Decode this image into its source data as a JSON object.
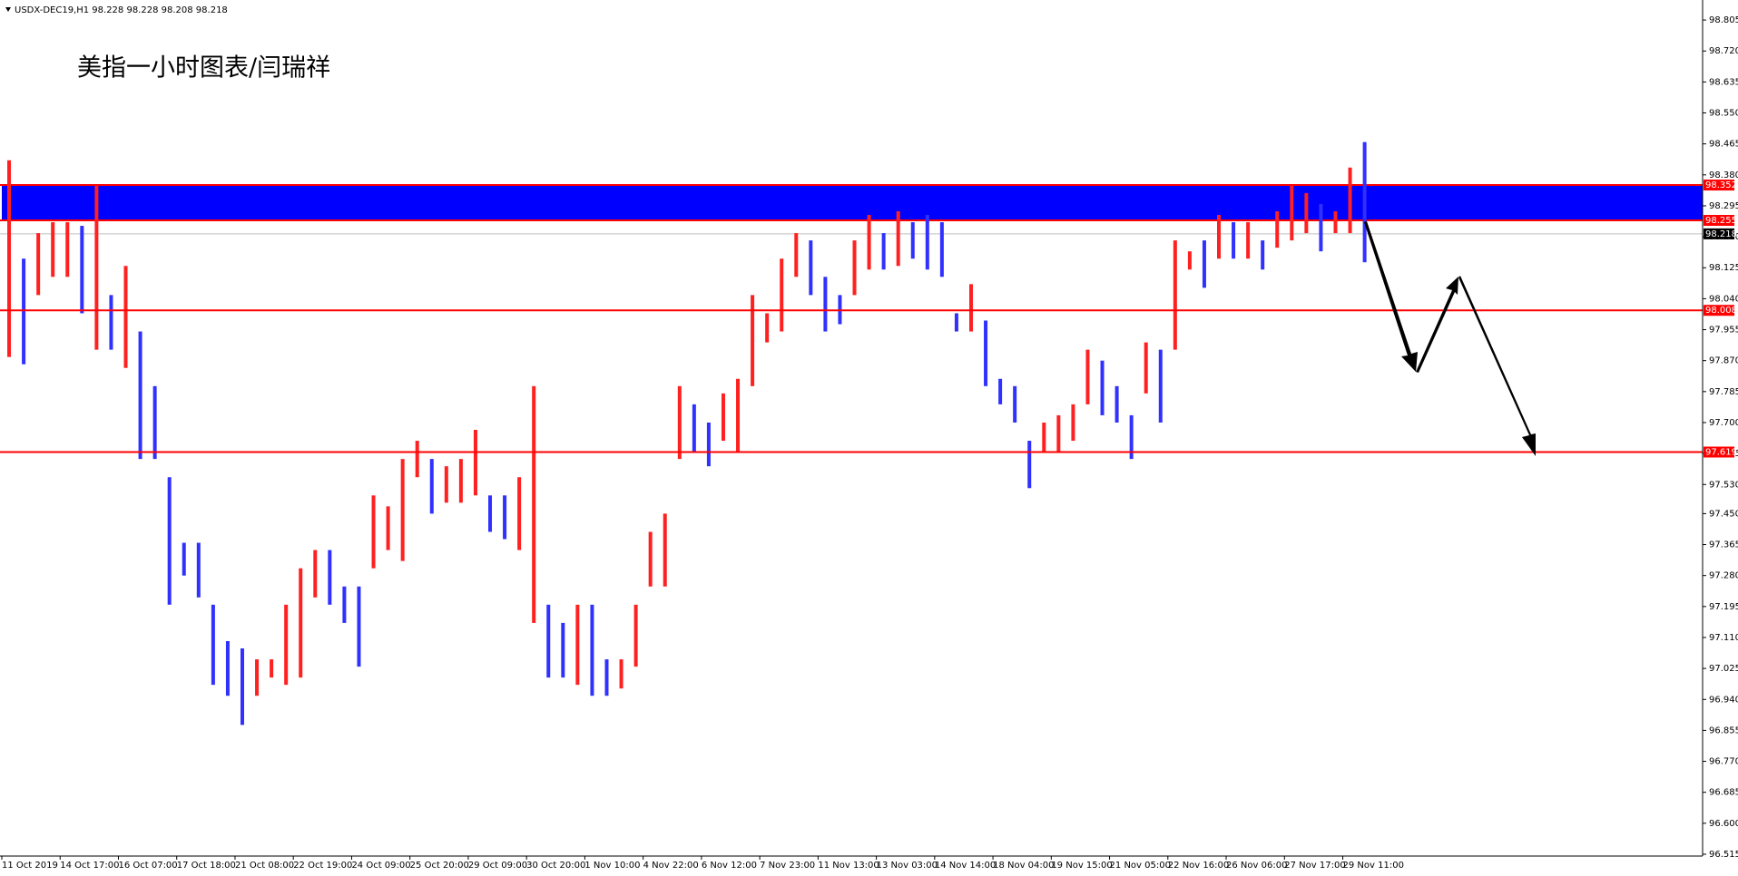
{
  "chart_data": {
    "type": "range-bar",
    "header": "USDX-DEC19,H1  98.228 98.228 98.208 98.218",
    "title": "美指一小时图表/闫瑞祥",
    "up_color": "#ff2020",
    "down_color": "#3030ff",
    "categories": [
      "11 Oct 2019",
      null,
      null,
      null,
      "14 Oct 17:00",
      null,
      null,
      null,
      "16 Oct 07:00",
      null,
      null,
      null,
      "17 Oct 18:00",
      null,
      null,
      null,
      "21 Oct 08:00",
      null,
      null,
      null,
      "22 Oct 19:00",
      null,
      null,
      null,
      "24 Oct 09:00",
      null,
      null,
      null,
      "25 Oct 20:00",
      null,
      null,
      null,
      "29 Oct 09:00",
      null,
      null,
      null,
      "30 Oct 20:00",
      null,
      null,
      null,
      "1 Nov 10:00",
      null,
      null,
      null,
      "4 Nov 22:00",
      null,
      null,
      null,
      "6 Nov 12:00",
      null,
      null,
      null,
      "7 Nov 23:00",
      null,
      null,
      null,
      "11 Nov 13:00",
      null,
      null,
      null,
      "13 Nov 03:00",
      null,
      null,
      null,
      "14 Nov 14:00",
      null,
      null,
      null,
      "18 Nov 04:00",
      null,
      null,
      null,
      "19 Nov 15:00",
      null,
      null,
      null,
      "21 Nov 05:00",
      null,
      null,
      null,
      "22 Nov 16:00",
      null,
      null,
      null,
      "26 Nov 06:00",
      null,
      null,
      null,
      "27 Nov 17:00",
      null,
      null,
      null,
      "29 Nov 11:00",
      null
    ],
    "high": [
      98.42,
      98.15,
      98.22,
      98.25,
      98.25,
      98.24,
      98.35,
      98.05,
      98.13,
      97.95,
      97.8,
      97.55,
      97.37,
      97.37,
      97.2,
      97.1,
      97.08,
      97.05,
      97.05,
      97.2,
      97.3,
      97.35,
      97.35,
      97.25,
      97.25,
      97.5,
      97.47,
      97.6,
      97.65,
      97.6,
      97.58,
      97.6,
      97.68,
      97.5,
      97.5,
      97.55,
      97.8,
      97.2,
      97.15,
      97.2,
      97.2,
      97.05,
      97.05,
      97.2,
      97.4,
      97.45,
      97.8,
      97.75,
      97.7,
      97.78,
      97.82,
      98.05,
      98.0,
      98.15,
      98.22,
      98.2,
      98.1,
      98.05,
      98.2,
      98.27,
      98.22,
      98.28,
      98.25,
      98.27,
      98.25,
      98.0,
      98.08,
      97.98,
      97.82,
      97.8,
      97.65,
      97.7,
      97.72,
      97.75,
      97.9,
      97.87,
      97.8,
      97.72,
      97.92,
      97.9,
      98.2,
      98.17,
      98.2,
      98.27,
      98.25,
      98.25,
      98.2,
      98.28,
      98.35,
      98.33,
      98.3,
      98.28,
      98.4,
      98.47
    ],
    "low": [
      97.88,
      97.86,
      98.05,
      98.1,
      98.1,
      98.0,
      97.9,
      97.9,
      97.85,
      97.6,
      97.6,
      97.2,
      97.28,
      97.22,
      96.98,
      96.95,
      96.87,
      96.95,
      97.0,
      96.98,
      97.0,
      97.22,
      97.2,
      97.15,
      97.03,
      97.3,
      97.35,
      97.32,
      97.55,
      97.45,
      97.48,
      97.48,
      97.5,
      97.4,
      97.38,
      97.35,
      97.15,
      97.0,
      97.0,
      96.98,
      96.95,
      96.95,
      96.97,
      97.03,
      97.25,
      97.25,
      97.6,
      97.62,
      97.58,
      97.65,
      97.62,
      97.8,
      97.92,
      97.95,
      98.1,
      98.05,
      97.95,
      97.97,
      98.05,
      98.12,
      98.12,
      98.13,
      98.15,
      98.12,
      98.1,
      97.95,
      97.95,
      97.8,
      97.75,
      97.7,
      97.52,
      97.62,
      97.62,
      97.65,
      97.75,
      97.72,
      97.7,
      97.6,
      97.78,
      97.7,
      97.9,
      98.12,
      98.07,
      98.15,
      98.15,
      98.15,
      98.12,
      98.18,
      98.2,
      98.22,
      98.17,
      98.22,
      98.22,
      98.14
    ],
    "zone": {
      "low": 98.255,
      "high": 98.352,
      "color": "#0000ff"
    },
    "levels": [
      98.008,
      97.619
    ],
    "level_color": "#ff0000",
    "current": 98.218,
    "current_color": "#000000",
    "ylim": [
      96.51,
      98.855
    ],
    "yticks": [
      98.805,
      {
        "value": 98.72,
        "label": "98.720"
      },
      98.635,
      {
        "value": 98.55,
        "label": "98.550"
      },
      98.465,
      {
        "value": 98.38,
        "label": "98.380"
      },
      98.295,
      {
        "value": 98.21,
        "label": "98.210"
      },
      98.125,
      {
        "value": 98.04,
        "label": "98.040"
      },
      97.955,
      {
        "value": 97.87,
        "label": "97.870"
      },
      97.785,
      {
        "value": 97.7,
        "label": "97.700"
      },
      97.615,
      {
        "value": 97.53,
        "label": "97.530"
      },
      {
        "value": 97.45,
        "label": "97.450"
      },
      97.365,
      {
        "value": 97.28,
        "label": "97.280"
      },
      97.195,
      {
        "value": 97.11,
        "label": "97.110"
      },
      97.025,
      {
        "value": 96.94,
        "label": "96.940"
      },
      96.855,
      {
        "value": 96.77,
        "label": "96.770"
      },
      96.685,
      {
        "value": 96.6,
        "label": "96.600"
      },
      96.515
    ]
  }
}
